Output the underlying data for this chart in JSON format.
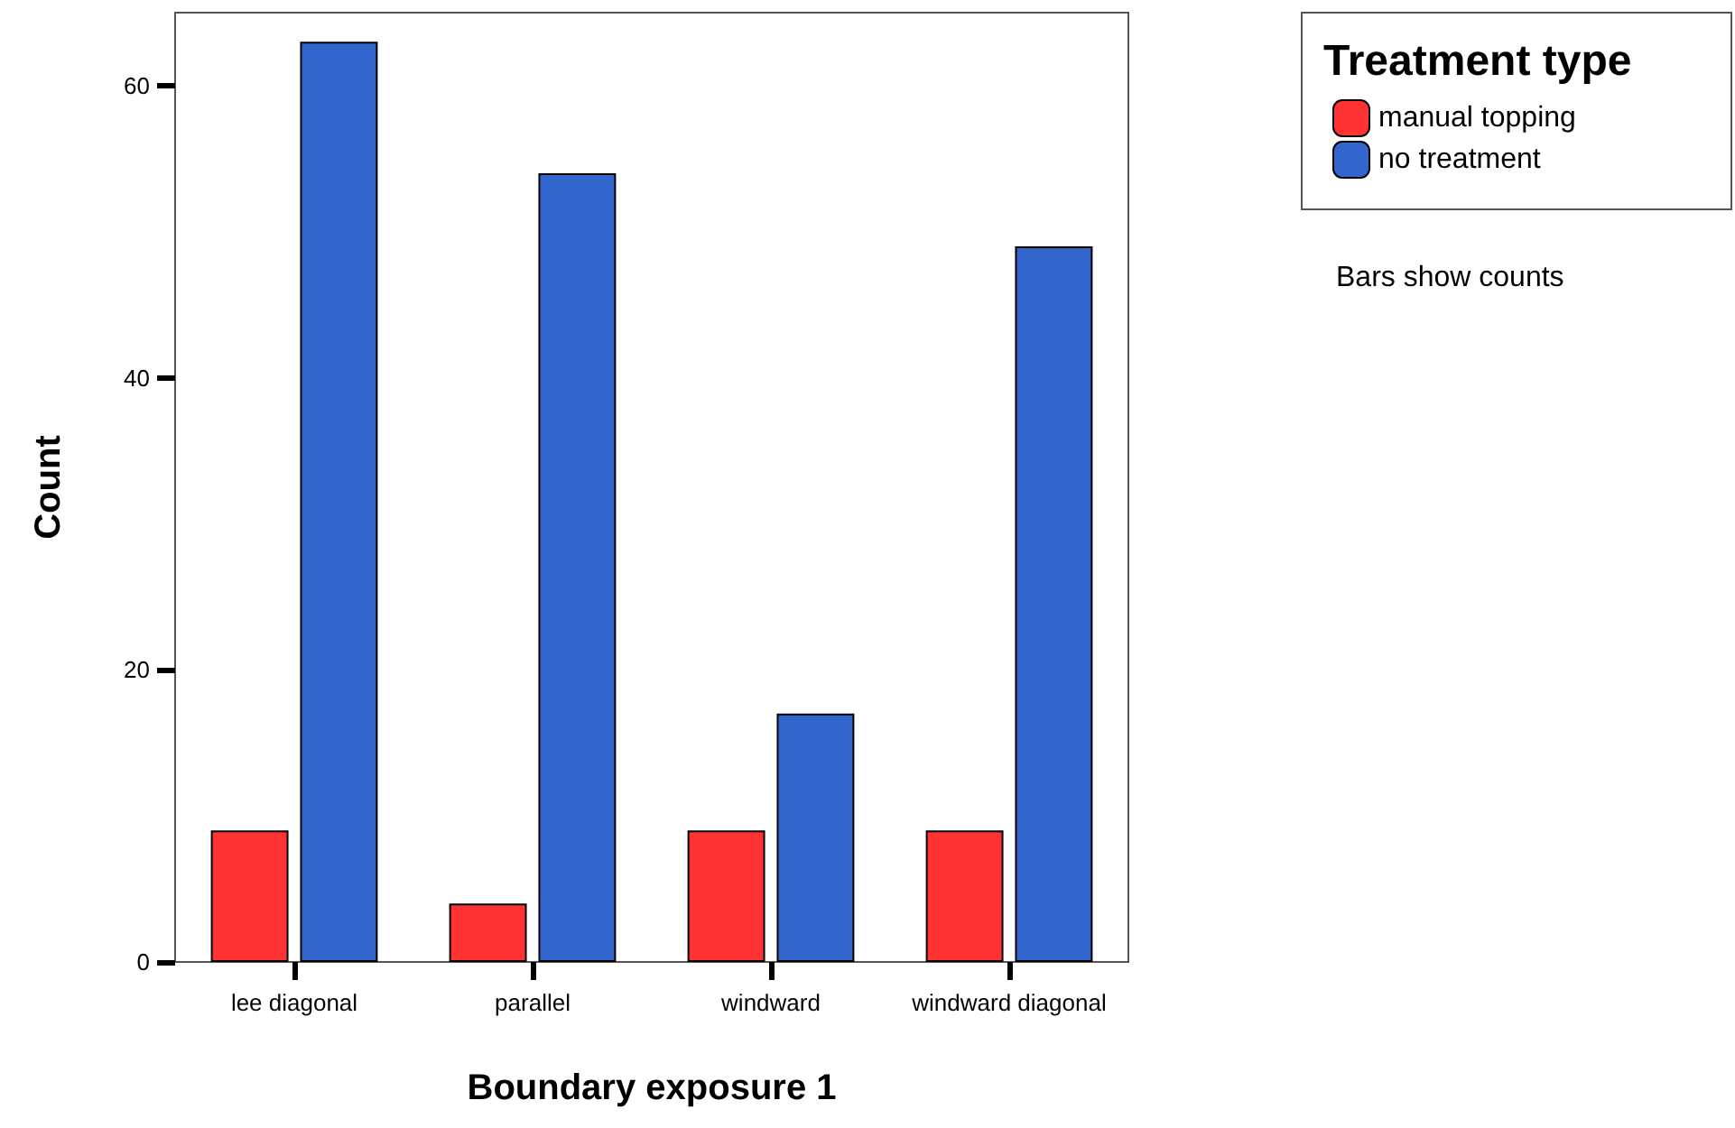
{
  "chart_data": {
    "type": "bar",
    "xlabel": "Boundary exposure 1",
    "ylabel": "Count",
    "legend_title": "Treatment type",
    "annotations": [
      "Bars show counts"
    ],
    "categories": [
      "lee diagonal",
      "parallel",
      "windward",
      "windward diagonal"
    ],
    "series": [
      {
        "name": "manual topping",
        "color": "#ff3333",
        "values": [
          9,
          4,
          9,
          9
        ]
      },
      {
        "name": "no treatment",
        "color": "#3366cc",
        "values": [
          63,
          54,
          17,
          49
        ]
      }
    ],
    "ylim": [
      0,
      65
    ],
    "yticks": [
      0,
      20,
      40,
      60
    ],
    "grid": false,
    "legend": "top right"
  }
}
